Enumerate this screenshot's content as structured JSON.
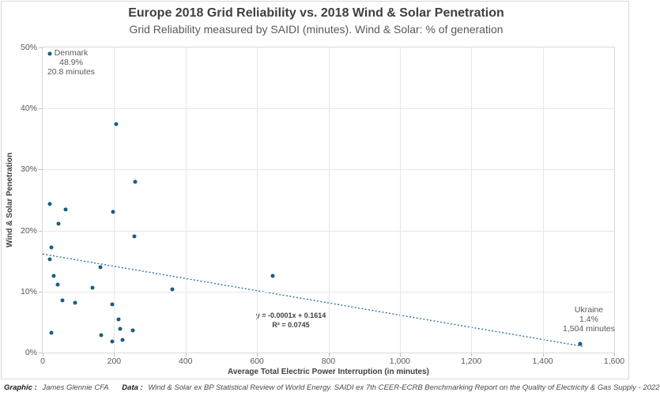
{
  "chart_data": {
    "type": "scatter",
    "title": "Europe 2018 Grid Reliability vs. 2018 Wind & Solar Penetration",
    "subtitle": "Grid Reliability measured by SAIDI (minutes). Wind & Solar: % of generation",
    "xlabel": "Average Total Electric Power Interruption (in minutes)",
    "ylabel": "Wind & Solar Penetration",
    "xlim": [
      0,
      1600
    ],
    "ylim": [
      0,
      50
    ],
    "x_tick_values": [
      0,
      200,
      400,
      600,
      800,
      1000,
      1200,
      1400,
      1600
    ],
    "x_tick_labels": [
      "0",
      "200",
      "400",
      "600",
      "800",
      "1,000",
      "1,200",
      "1,400",
      "1,600"
    ],
    "y_tick_values": [
      0,
      10,
      20,
      30,
      40,
      50
    ],
    "y_tick_labels": [
      "0%",
      "10%",
      "20%",
      "30%",
      "40%",
      "50%"
    ],
    "grid": true,
    "legend": false,
    "point_color": "#156082",
    "trendline_color": "#2e76a6",
    "points": [
      [
        20.8,
        48.9
      ],
      [
        206,
        37.5
      ],
      [
        260,
        28.0
      ],
      [
        20,
        24.4
      ],
      [
        64,
        23.4
      ],
      [
        197,
        23.0
      ],
      [
        44,
        21.1
      ],
      [
        257,
        19.1
      ],
      [
        24,
        17.2
      ],
      [
        21,
        15.3
      ],
      [
        161,
        14.0
      ],
      [
        31,
        12.6
      ],
      [
        643,
        12.6
      ],
      [
        43,
        11.1
      ],
      [
        139,
        10.6
      ],
      [
        364,
        10.4
      ],
      [
        56,
        8.5
      ],
      [
        91,
        8.2
      ],
      [
        195,
        7.9
      ],
      [
        212,
        5.5
      ],
      [
        216,
        3.9
      ],
      [
        252,
        3.6
      ],
      [
        24,
        3.2
      ],
      [
        164,
        2.9
      ],
      [
        224,
        2.1
      ],
      [
        194,
        1.8
      ],
      [
        1504,
        1.4
      ]
    ],
    "trendline": {
      "slope": -0.0001,
      "intercept": 0.1614,
      "x_start": 0,
      "x_end": 1516,
      "equation": "y = -0.0001x + 0.1614",
      "r2": "R² = 0.0745"
    },
    "annotations": [
      {
        "country": "Denmark",
        "lines": [
          "Denmark",
          "48.9%",
          "20.8 minutes"
        ]
      },
      {
        "country": "Ukraine",
        "lines": [
          "Ukraine",
          "1.4%",
          "1,504 minutes"
        ]
      }
    ]
  },
  "footer": {
    "graphic_label": "Graphic :",
    "graphic_value": "James Glennie CFA",
    "data_label": "Data :",
    "data_value": "Wind & Solar ex  BP Statistical Review of World Energy. SAIDI ex 7th CEER-ECRB Benchmarking Report on the Quality of Electricity & Gas Supply - 2022"
  }
}
